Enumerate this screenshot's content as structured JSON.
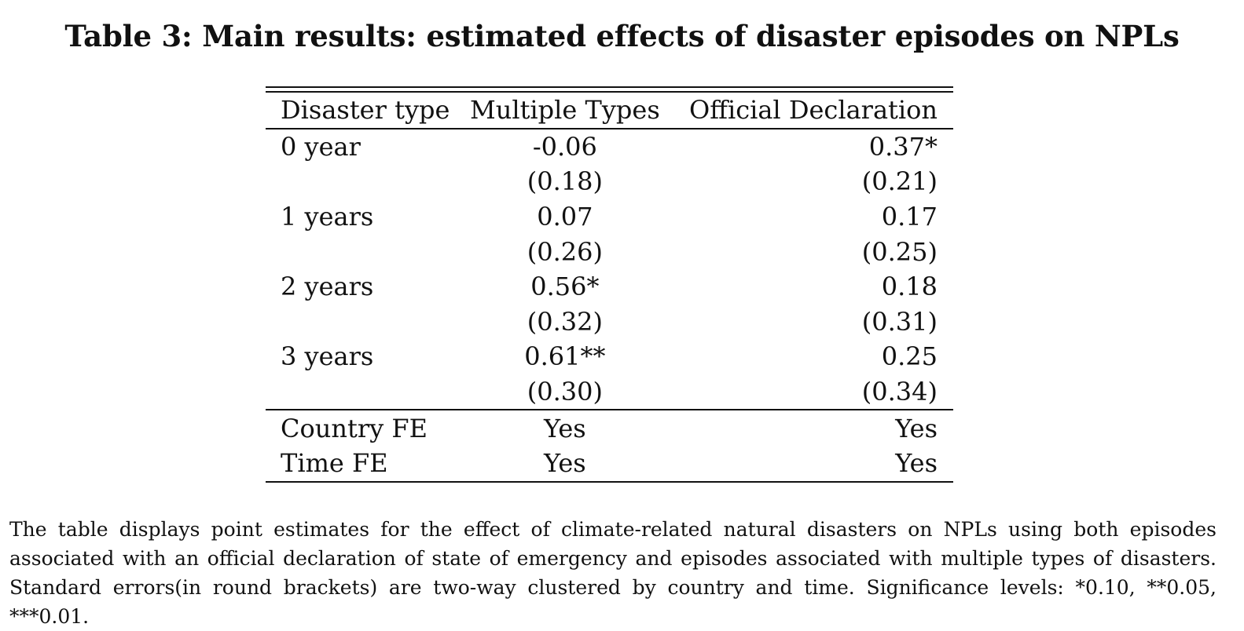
{
  "caption": "Table 3: Main results: estimated effects of disaster episodes on NPLs",
  "table": {
    "headers": [
      "Disaster type",
      "Multiple Types",
      "Official Declaration"
    ],
    "rows": [
      [
        "0 year",
        "-0.06",
        "0.37*"
      ],
      [
        "",
        "(0.18)",
        "(0.21)"
      ],
      [
        "1 years",
        "0.07",
        "0.17"
      ],
      [
        "",
        "(0.26)",
        "(0.25)"
      ],
      [
        "2 years",
        "0.56*",
        "0.18"
      ],
      [
        "",
        "(0.32)",
        "(0.31)"
      ],
      [
        "3 years",
        "0.61**",
        "0.25"
      ],
      [
        "",
        "(0.30)",
        "(0.34)"
      ]
    ],
    "fe_rows": [
      [
        "Country FE",
        "Yes",
        "Yes"
      ],
      [
        "Time FE",
        "Yes",
        "Yes"
      ]
    ]
  },
  "notes": "The table displays point estimates for the effect of climate-related natural disasters on NPLs using both episodes associated with an official declaration of state of emergency and episodes associated with multiple types of disasters. Standard errors(in round brackets) are two-way clustered by country and time. Significance levels: *0.10, **0.05, ***0.01."
}
